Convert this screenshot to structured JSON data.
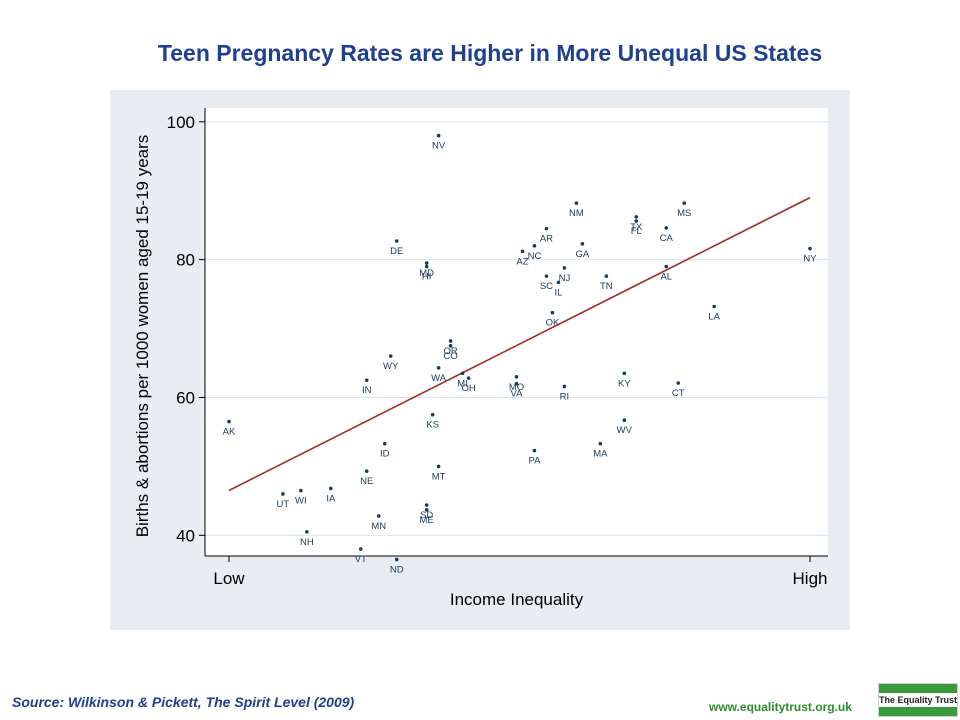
{
  "slide": {
    "title": "Teen Pregnancy Rates are Higher in More Unequal US States",
    "source": "Source: Wilkinson & Pickett, The Spirit Level (2009)",
    "website": "www.equalitytrust.org.uk",
    "logo_text": "The Equality Trust"
  },
  "colors": {
    "title": "#1f3f8f",
    "point": "#1a3a5a",
    "fit_line": "#a52a2a",
    "plot_background": "#e8edf1",
    "website": "#2e8b2e",
    "logo": "#3c9a3c"
  },
  "chart_data": {
    "type": "scatter",
    "title": "",
    "xlabel": "Income Inequality",
    "ylabel": "Births & abortions per 1000 women aged 15-19 years",
    "x_tick_labels": [
      "Low",
      "High"
    ],
    "y_ticks": [
      40,
      60,
      80,
      100
    ],
    "ylim": [
      37,
      102
    ],
    "xlim": [
      0,
      1
    ],
    "grid": true,
    "legend": "none",
    "fit_line": {
      "x": [
        0.02,
        0.99
      ],
      "y": [
        46.5,
        89
      ]
    },
    "points": [
      {
        "label": "AK",
        "x": 0.02,
        "y": 56.5
      },
      {
        "label": "UT",
        "x": 0.11,
        "y": 46
      },
      {
        "label": "WI",
        "x": 0.14,
        "y": 46.5
      },
      {
        "label": "NH",
        "x": 0.15,
        "y": 40.5
      },
      {
        "label": "IA",
        "x": 0.19,
        "y": 46.8
      },
      {
        "label": "VT",
        "x": 0.24,
        "y": 38
      },
      {
        "label": "IN",
        "x": 0.25,
        "y": 62.5
      },
      {
        "label": "NE",
        "x": 0.25,
        "y": 49.3
      },
      {
        "label": "MN",
        "x": 0.27,
        "y": 42.8
      },
      {
        "label": "ID",
        "x": 0.28,
        "y": 53.3
      },
      {
        "label": "WY",
        "x": 0.29,
        "y": 66
      },
      {
        "label": "ND",
        "x": 0.3,
        "y": 36.5
      },
      {
        "label": "DE",
        "x": 0.3,
        "y": 82.7
      },
      {
        "label": "MD",
        "x": 0.35,
        "y": 79.5
      },
      {
        "label": "HI",
        "x": 0.35,
        "y": 79
      },
      {
        "label": "SD",
        "x": 0.35,
        "y": 44.4
      },
      {
        "label": "ME",
        "x": 0.35,
        "y": 43.7
      },
      {
        "label": "KS",
        "x": 0.36,
        "y": 57.5
      },
      {
        "label": "NV",
        "x": 0.37,
        "y": 98
      },
      {
        "label": "WA",
        "x": 0.37,
        "y": 64.3
      },
      {
        "label": "MT",
        "x": 0.37,
        "y": 50
      },
      {
        "label": "CO",
        "x": 0.39,
        "y": 67.5
      },
      {
        "label": "OR",
        "x": 0.39,
        "y": 68.2
      },
      {
        "label": "MI",
        "x": 0.41,
        "y": 63.5
      },
      {
        "label": "OH",
        "x": 0.42,
        "y": 62.8
      },
      {
        "label": "MO",
        "x": 0.5,
        "y": 63
      },
      {
        "label": "VA",
        "x": 0.5,
        "y": 62
      },
      {
        "label": "AZ",
        "x": 0.51,
        "y": 81.2
      },
      {
        "label": "NC",
        "x": 0.53,
        "y": 82
      },
      {
        "label": "PA",
        "x": 0.53,
        "y": 52.3
      },
      {
        "label": "SC",
        "x": 0.55,
        "y": 77.6
      },
      {
        "label": "AR",
        "x": 0.55,
        "y": 84.5
      },
      {
        "label": "OK",
        "x": 0.56,
        "y": 72.3
      },
      {
        "label": "IL",
        "x": 0.57,
        "y": 76.7
      },
      {
        "label": "NJ",
        "x": 0.58,
        "y": 78.8
      },
      {
        "label": "RI",
        "x": 0.58,
        "y": 61.6
      },
      {
        "label": "NM",
        "x": 0.6,
        "y": 88.2
      },
      {
        "label": "GA",
        "x": 0.61,
        "y": 82.3
      },
      {
        "label": "MA",
        "x": 0.64,
        "y": 53.3
      },
      {
        "label": "TN",
        "x": 0.65,
        "y": 77.6
      },
      {
        "label": "KY",
        "x": 0.68,
        "y": 63.5
      },
      {
        "label": "WV",
        "x": 0.68,
        "y": 56.7
      },
      {
        "label": "FL",
        "x": 0.7,
        "y": 85.6
      },
      {
        "label": "TX",
        "x": 0.7,
        "y": 86.2
      },
      {
        "label": "CA",
        "x": 0.75,
        "y": 84.6
      },
      {
        "label": "AL",
        "x": 0.75,
        "y": 79
      },
      {
        "label": "CT",
        "x": 0.77,
        "y": 62.1
      },
      {
        "label": "MS",
        "x": 0.78,
        "y": 88.2
      },
      {
        "label": "LA",
        "x": 0.83,
        "y": 73.2
      },
      {
        "label": "NY",
        "x": 0.99,
        "y": 81.6
      }
    ]
  }
}
